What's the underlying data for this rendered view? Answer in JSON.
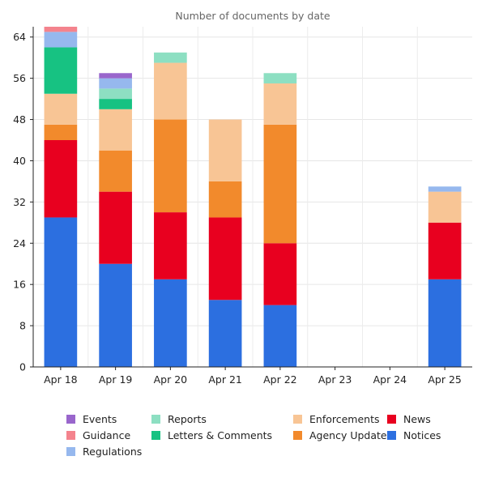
{
  "chart_data": {
    "type": "bar",
    "stacked": true,
    "title": "Number of documents by date",
    "xlabel": "",
    "ylabel": "",
    "ylim": [
      0,
      66
    ],
    "yticks": [
      0,
      8,
      16,
      24,
      32,
      40,
      48,
      56,
      64
    ],
    "grid": true,
    "legend_position": "bottom",
    "categories": [
      "Apr 18",
      "Apr 19",
      "Apr 20",
      "Apr 21",
      "Apr 22",
      "Apr 23",
      "Apr 24",
      "Apr 25"
    ],
    "series": [
      {
        "name": "Notices",
        "color": "#2c6fe0",
        "values": [
          29,
          20,
          17,
          13,
          12,
          0,
          0,
          17
        ]
      },
      {
        "name": "News",
        "color": "#e8001f",
        "values": [
          15,
          14,
          13,
          16,
          12,
          0,
          0,
          11
        ]
      },
      {
        "name": "Agency Updates",
        "color": "#f28a2c",
        "values": [
          3,
          8,
          18,
          7,
          23,
          0,
          0,
          0
        ]
      },
      {
        "name": "Enforcements",
        "color": "#f8c595",
        "values": [
          6,
          8,
          11,
          12,
          8,
          0,
          0,
          6
        ]
      },
      {
        "name": "Letters & Comments",
        "color": "#17c282",
        "values": [
          9,
          2,
          0,
          0,
          0,
          0,
          0,
          0
        ]
      },
      {
        "name": "Reports",
        "color": "#8ddfc2",
        "values": [
          0,
          2,
          2,
          0,
          2,
          0,
          0,
          0
        ]
      },
      {
        "name": "Regulations",
        "color": "#96b8ee",
        "values": [
          3,
          2,
          0,
          0,
          0,
          0,
          0,
          1
        ]
      },
      {
        "name": "Guidance",
        "color": "#f4838d",
        "values": [
          1,
          0,
          0,
          0,
          0,
          0,
          0,
          0
        ]
      },
      {
        "name": "Events",
        "color": "#9966cc",
        "values": [
          0,
          1,
          0,
          0,
          0,
          0,
          0,
          0
        ]
      }
    ]
  },
  "legend": {
    "columns": [
      [
        "Events",
        "Guidance",
        "Regulations"
      ],
      [
        "Reports",
        "Letters & Comments"
      ],
      [
        "Enforcements",
        "Agency Updates"
      ],
      [
        "News",
        "Notices"
      ]
    ]
  }
}
